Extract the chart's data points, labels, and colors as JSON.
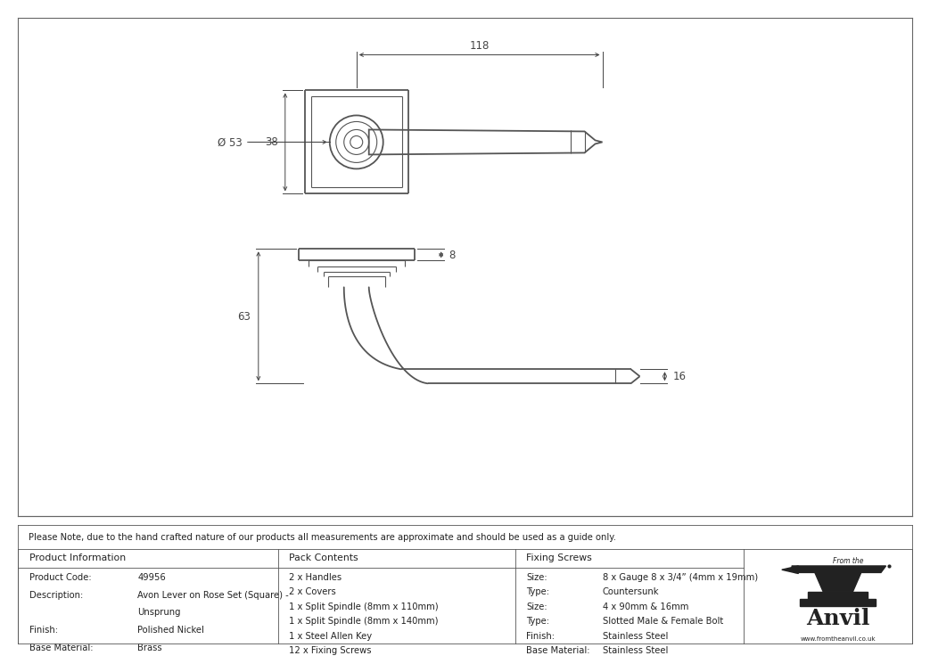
{
  "line_color": "#555555",
  "dim_color": "#444444",
  "note_text": "Please Note, due to the hand crafted nature of our products all measurements are approximate and should be used as a guide only.",
  "product_info_header": "Product Information",
  "pack_contents_header": "Pack Contents",
  "fixing_screws_header": "Fixing Screws",
  "product_code_label": "Product Code:",
  "product_code_value": "49956",
  "description_label": "Description:",
  "description_value": "Avon Lever on Rose Set (Square) -",
  "description_value2": "Unsprung",
  "finish_label": "Finish:",
  "finish_value": "Polished Nickel",
  "base_material_label": "Base Material:",
  "base_material_value": "Brass",
  "pack_contents": [
    "2 x Handles",
    "2 x Covers",
    "1 x Split Spindle (8mm x 110mm)",
    "1 x Split Spindle (8mm x 140mm)",
    "1 x Steel Allen Key",
    "12 x Fixing Screws"
  ],
  "fixing_screws": [
    [
      "Size:",
      "8 x Gauge 8 x 3/4” (4mm x 19mm)"
    ],
    [
      "Type:",
      "Countersunk"
    ],
    [
      "Size:",
      "4 x 90mm & 16mm"
    ],
    [
      "Type:",
      "Slotted Male & Female Bolt"
    ],
    [
      "Finish:",
      "Stainless Steel"
    ],
    [
      "Base Material:",
      "Stainless Steel"
    ]
  ],
  "dim_118": "118",
  "dim_53": "Ø 53",
  "dim_38": "38",
  "dim_8": "8",
  "dim_63": "63",
  "dim_16": "16"
}
